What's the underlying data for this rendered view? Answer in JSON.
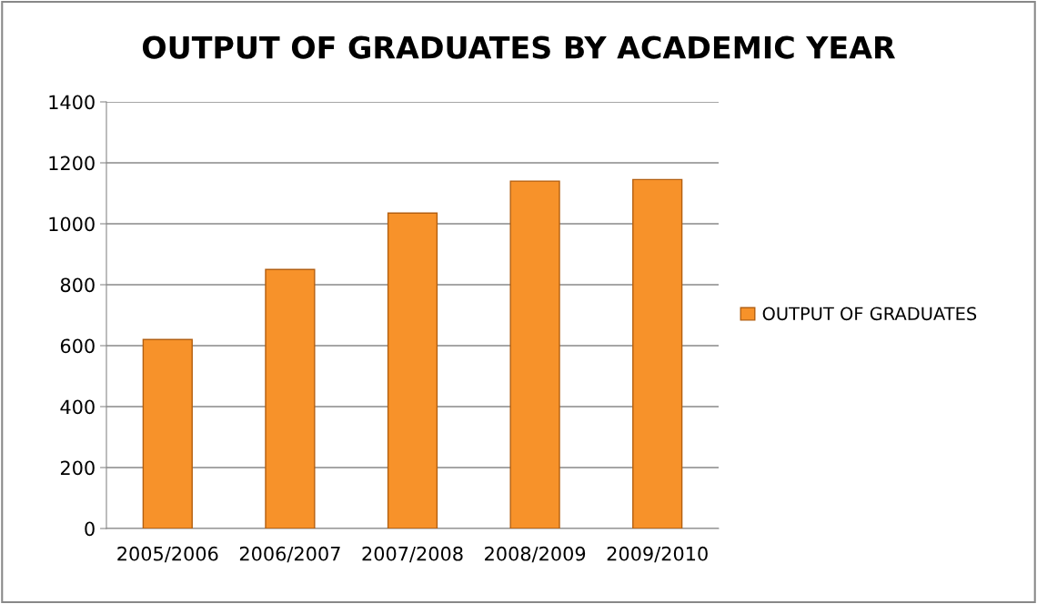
{
  "chart_data": {
    "type": "bar",
    "title": "OUTPUT OF GRADUATES BY ACADEMIC YEAR",
    "categories": [
      "2005/2006",
      "2006/2007",
      "2007/2008",
      "2008/2009",
      "2009/2010"
    ],
    "series": [
      {
        "name": "OUTPUT OF GRADUATES",
        "color": "#f7922a",
        "values": [
          620,
          850,
          1035,
          1140,
          1145
        ]
      }
    ],
    "ylim": [
      0,
      1400
    ],
    "yticks": [
      0,
      200,
      400,
      600,
      800,
      1000,
      1200,
      1400
    ],
    "grid": "y",
    "legend": "right"
  }
}
